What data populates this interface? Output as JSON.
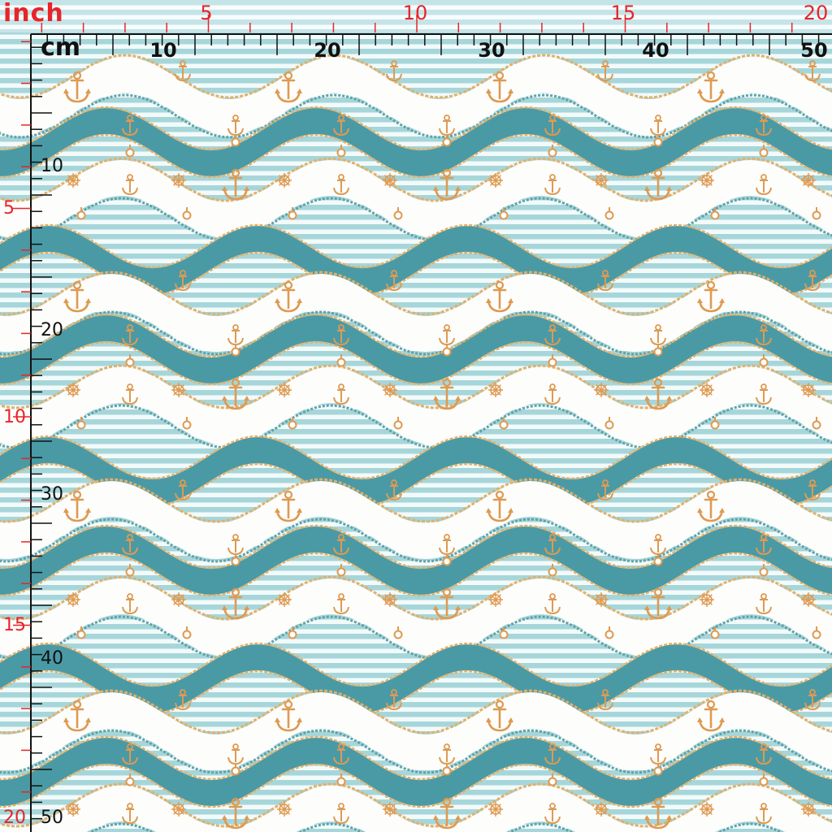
{
  "ruler": {
    "inch_unit": "inch",
    "cm_unit": "cm",
    "top_inch_labels": [
      "5",
      "10",
      "15",
      "20"
    ],
    "top_cm_labels": [
      "10",
      "20",
      "30",
      "40",
      "50"
    ],
    "left_inch_labels": [
      "5",
      "10",
      "15",
      "20"
    ],
    "left_cm_labels": [
      "10",
      "20",
      "30",
      "40",
      "50"
    ]
  },
  "pattern": {
    "motifs": [
      "anchor-icon",
      "ships-wheel-icon",
      "ring-icon",
      "rope-icon"
    ],
    "colors": {
      "teal_band": "#4a9aa6",
      "stripe_light": "#a6d6da",
      "stripe_white": "#f3fafa",
      "white_wave": "#fdfdfb",
      "rope_gold": "#e2b06a",
      "anchor_gold": "#de9a52",
      "rope_teal": "#5fa2a8",
      "ruler_red": "#e8242a",
      "ruler_black": "#111111"
    }
  }
}
